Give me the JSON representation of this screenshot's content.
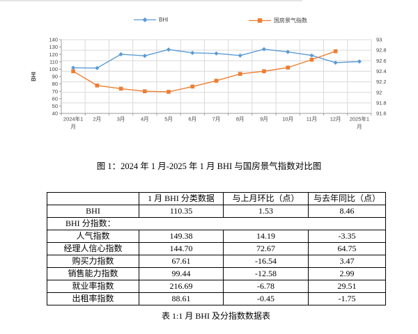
{
  "chart_data": {
    "type": "line",
    "title": "图 1：2024 年 1 月-2025 年 1 月 BHI 与国房景气指数对比图",
    "categories": [
      "2024年1月",
      "2月",
      "3月",
      "4月",
      "5月",
      "6月",
      "7月",
      "8月",
      "9月",
      "10月",
      "11月",
      "12月",
      "2025年1月"
    ],
    "series": [
      {
        "name": "BHI",
        "axis": "left",
        "color": "#5b9bd5",
        "marker": "diamond",
        "values": [
          101.89,
          101.5,
          120.2,
          118.1,
          126.6,
          122.1,
          121.3,
          118.5,
          127.1,
          123.4,
          118.6,
          108.82,
          110.35
        ]
      },
      {
        "name": "国房景气指数",
        "axis": "right",
        "color": "#ed7d31",
        "marker": "square",
        "values": [
          92.4,
          92.13,
          92.07,
          92.02,
          92.01,
          92.11,
          92.22,
          92.35,
          92.4,
          92.47,
          92.62,
          92.78,
          null
        ]
      }
    ],
    "y_left": {
      "label": "BHI",
      "min": 40,
      "max": 140,
      "tick_step": 10
    },
    "y_right": {
      "min": 91.6,
      "max": 93,
      "tick_step": 0.2
    },
    "grid": true,
    "legend_position": "top",
    "grid_color": "#d9d9d9",
    "axis_color": "#9b9b9b"
  },
  "table": {
    "headers": [
      "",
      "1 月 BHI 分类数据",
      "与上月环比（点）",
      "与去年同比（点）"
    ],
    "rows": [
      {
        "label": "BHI",
        "span": false,
        "values": [
          "110.35",
          "1.53",
          "8.46"
        ]
      },
      {
        "label": "BHI 分指数：",
        "span": true,
        "values": []
      },
      {
        "label": "人气指数",
        "span": false,
        "values": [
          "149.38",
          "14.19",
          "-3.35"
        ]
      },
      {
        "label": "经理人信心指数",
        "span": false,
        "values": [
          "144.70",
          "72.67",
          "64.75"
        ]
      },
      {
        "label": "购买力指数",
        "span": false,
        "values": [
          "67.61",
          "-16.54",
          "3.47"
        ]
      },
      {
        "label": "销售能力指数",
        "span": false,
        "values": [
          "99.44",
          "-12.58",
          "2.99"
        ]
      },
      {
        "label": "就业率指数",
        "span": false,
        "values": [
          "216.69",
          "-6.78",
          "29.51"
        ]
      },
      {
        "label": "出租率指数",
        "span": false,
        "values": [
          "88.61",
          "-0.45",
          "-1.75"
        ]
      }
    ],
    "caption": "表 1:1 月 BHI 及分指数数据表"
  }
}
